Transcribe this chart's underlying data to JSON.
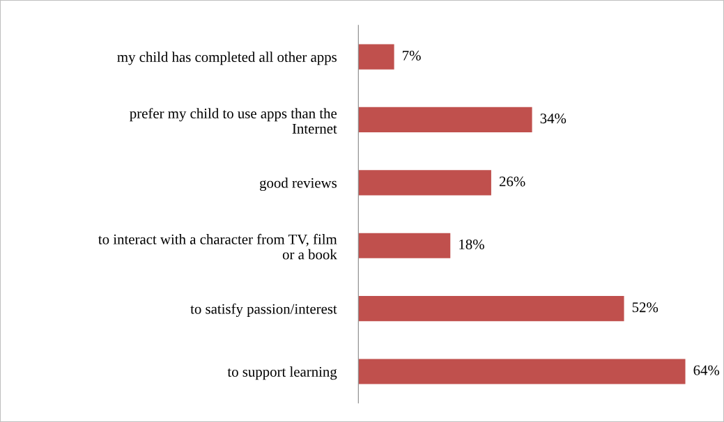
{
  "chart_data": {
    "type": "bar",
    "orientation": "horizontal",
    "categories": [
      "my child has completed all other apps",
      "prefer my child to use apps than the Internet",
      "good reviews",
      "to interact with a character from TV, film or a book",
      "to satisfy passion/interest",
      "to support learning"
    ],
    "values": [
      7,
      34,
      26,
      18,
      52,
      64
    ],
    "value_labels": [
      "7%",
      "34%",
      "26%",
      "18%",
      "52%",
      "64%"
    ],
    "color": "#c0504d",
    "grid": false,
    "legend": false
  }
}
